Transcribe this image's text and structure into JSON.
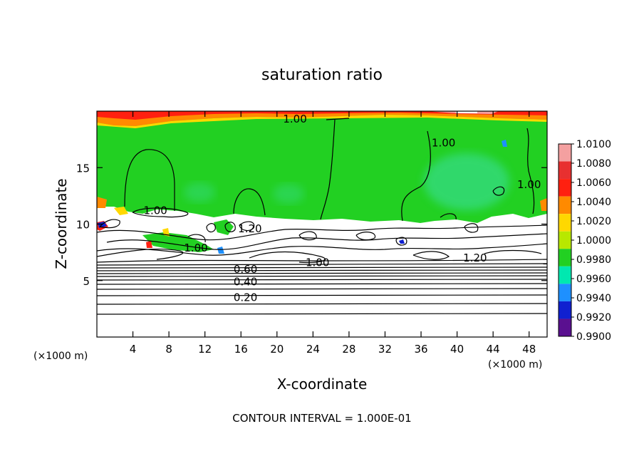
{
  "chart_data": {
    "type": "heatmap",
    "title": "saturation ratio",
    "xlabel": "X-coordinate",
    "ylabel": "Z-coordinate",
    "x_unit": "(×1000 m)",
    "y_unit": "(×1000 m)",
    "xlim": [
      0,
      50
    ],
    "ylim": [
      0,
      20
    ],
    "x_ticks": [
      4,
      8,
      12,
      16,
      20,
      24,
      28,
      32,
      36,
      40,
      44,
      48
    ],
    "y_ticks": [
      5,
      10,
      15
    ],
    "colorbar": {
      "labels": [
        "1.0100",
        "1.0080",
        "1.0060",
        "1.0040",
        "1.0020",
        "1.0000",
        "0.9980",
        "0.9960",
        "0.9940",
        "0.9920",
        "0.9900"
      ],
      "colors": [
        "#f4a0a0",
        "#e83030",
        "#ff2010",
        "#ff8a00",
        "#ffd800",
        "#b8e800",
        "#22d022",
        "#00e8b0",
        "#1e90ff",
        "#1020d0",
        "#5a1090"
      ]
    },
    "contour_labels": [
      {
        "text": "1.00",
        "x": 22.0,
        "y": 19.3
      },
      {
        "text": "1.00",
        "x": 38.5,
        "y": 17.2
      },
      {
        "text": "1.00",
        "x": 48.0,
        "y": 13.5
      },
      {
        "text": "1.00",
        "x": 6.5,
        "y": 11.2
      },
      {
        "text": "1.20",
        "x": 17.0,
        "y": 9.6
      },
      {
        "text": "1.00",
        "x": 11.0,
        "y": 7.9
      },
      {
        "text": "1.00",
        "x": 24.5,
        "y": 6.6
      },
      {
        "text": "1.20",
        "x": 42.0,
        "y": 7.0
      },
      {
        "text": "0.60",
        "x": 16.5,
        "y": 6.0
      },
      {
        "text": "0.40",
        "x": 16.5,
        "y": 4.9
      },
      {
        "text": "0.20",
        "x": 16.5,
        "y": 3.5
      }
    ],
    "contour_interval_label": "CONTOUR INTERVAL = 1.000E-01"
  }
}
